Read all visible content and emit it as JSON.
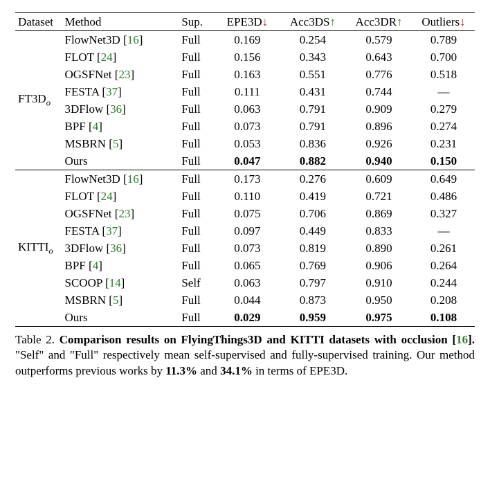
{
  "header": {
    "dataset": "Dataset",
    "method": "Method",
    "sup": "Sup.",
    "epe3d": "EPE3D",
    "acc3ds": "Acc3DS",
    "acc3dr": "Acc3DR",
    "outliers": "Outliers"
  },
  "arrows": {
    "down": "↓",
    "up": "↑"
  },
  "groups": [
    {
      "dataset_html": "FT3D",
      "dataset_sub": "o",
      "rows": [
        {
          "method": "FlowNet3D",
          "cite": "16",
          "sup": "Full",
          "epe3d": "0.169",
          "acc3ds": "0.254",
          "acc3dr": "0.579",
          "outliers": "0.789",
          "bold": false
        },
        {
          "method": "FLOT",
          "cite": "24",
          "sup": "Full",
          "epe3d": "0.156",
          "acc3ds": "0.343",
          "acc3dr": "0.643",
          "outliers": "0.700",
          "bold": false
        },
        {
          "method": "OGSFNet",
          "cite": "23",
          "sup": "Full",
          "epe3d": "0.163",
          "acc3ds": "0.551",
          "acc3dr": "0.776",
          "outliers": "0.518",
          "bold": false
        },
        {
          "method": "FESTA",
          "cite": "37",
          "sup": "Full",
          "epe3d": "0.111",
          "acc3ds": "0.431",
          "acc3dr": "0.744",
          "outliers": "—",
          "bold": false
        },
        {
          "method": "3DFlow",
          "cite": "36",
          "sup": "Full",
          "epe3d": "0.063",
          "acc3ds": "0.791",
          "acc3dr": "0.909",
          "outliers": "0.279",
          "bold": false
        },
        {
          "method": "BPF",
          "cite": "4",
          "sup": "Full",
          "epe3d": "0.073",
          "acc3ds": "0.791",
          "acc3dr": "0.896",
          "outliers": "0.274",
          "bold": false
        },
        {
          "method": "MSBRN",
          "cite": "5",
          "sup": "Full",
          "epe3d": "0.053",
          "acc3ds": "0.836",
          "acc3dr": "0.926",
          "outliers": "0.231",
          "bold": false
        },
        {
          "method": "Ours",
          "cite": "",
          "sup": "Full",
          "epe3d": "0.047",
          "acc3ds": "0.882",
          "acc3dr": "0.940",
          "outliers": "0.150",
          "bold": true
        }
      ]
    },
    {
      "dataset_html": "KITTI",
      "dataset_sub": "o",
      "rows": [
        {
          "method": "FlowNet3D",
          "cite": "16",
          "sup": "Full",
          "epe3d": "0.173",
          "acc3ds": "0.276",
          "acc3dr": "0.609",
          "outliers": "0.649",
          "bold": false
        },
        {
          "method": "FLOT",
          "cite": "24",
          "sup": "Full",
          "epe3d": "0.110",
          "acc3ds": "0.419",
          "acc3dr": "0.721",
          "outliers": "0.486",
          "bold": false
        },
        {
          "method": "OGSFNet",
          "cite": "23",
          "sup": "Full",
          "epe3d": "0.075",
          "acc3ds": "0.706",
          "acc3dr": "0.869",
          "outliers": "0.327",
          "bold": false
        },
        {
          "method": "FESTA",
          "cite": "37",
          "sup": "Full",
          "epe3d": "0.097",
          "acc3ds": "0.449",
          "acc3dr": "0.833",
          "outliers": "—",
          "bold": false
        },
        {
          "method": "3DFlow",
          "cite": "36",
          "sup": "Full",
          "epe3d": "0.073",
          "acc3ds": "0.819",
          "acc3dr": "0.890",
          "outliers": "0.261",
          "bold": false
        },
        {
          "method": "BPF",
          "cite": "4",
          "sup": "Full",
          "epe3d": "0.065",
          "acc3ds": "0.769",
          "acc3dr": "0.906",
          "outliers": "0.264",
          "bold": false
        },
        {
          "method": "SCOOP",
          "cite": "14",
          "sup": "Self",
          "epe3d": "0.063",
          "acc3ds": "0.797",
          "acc3dr": "0.910",
          "outliers": "0.244",
          "bold": false
        },
        {
          "method": "MSBRN",
          "cite": "5",
          "sup": "Full",
          "epe3d": "0.044",
          "acc3ds": "0.873",
          "acc3dr": "0.950",
          "outliers": "0.208",
          "bold": false
        },
        {
          "method": "Ours",
          "cite": "",
          "sup": "Full",
          "epe3d": "0.029",
          "acc3ds": "0.959",
          "acc3dr": "0.975",
          "outliers": "0.108",
          "bold": true
        }
      ]
    }
  ],
  "caption": {
    "label": "Table 2.",
    "title_a": "Comparison results on FlyingThings3D and KITTI datasets with occlusion",
    "title_cite": "16",
    "period": ".",
    "body_a": " \"Self\" and \"Full\" respectively mean self-supervised and fully-supervised training. Our method outperforms previous works by ",
    "pct1": "11.3%",
    "body_b": " and ",
    "pct2": "34.1%",
    "body_c": " in terms of EPE3D."
  }
}
